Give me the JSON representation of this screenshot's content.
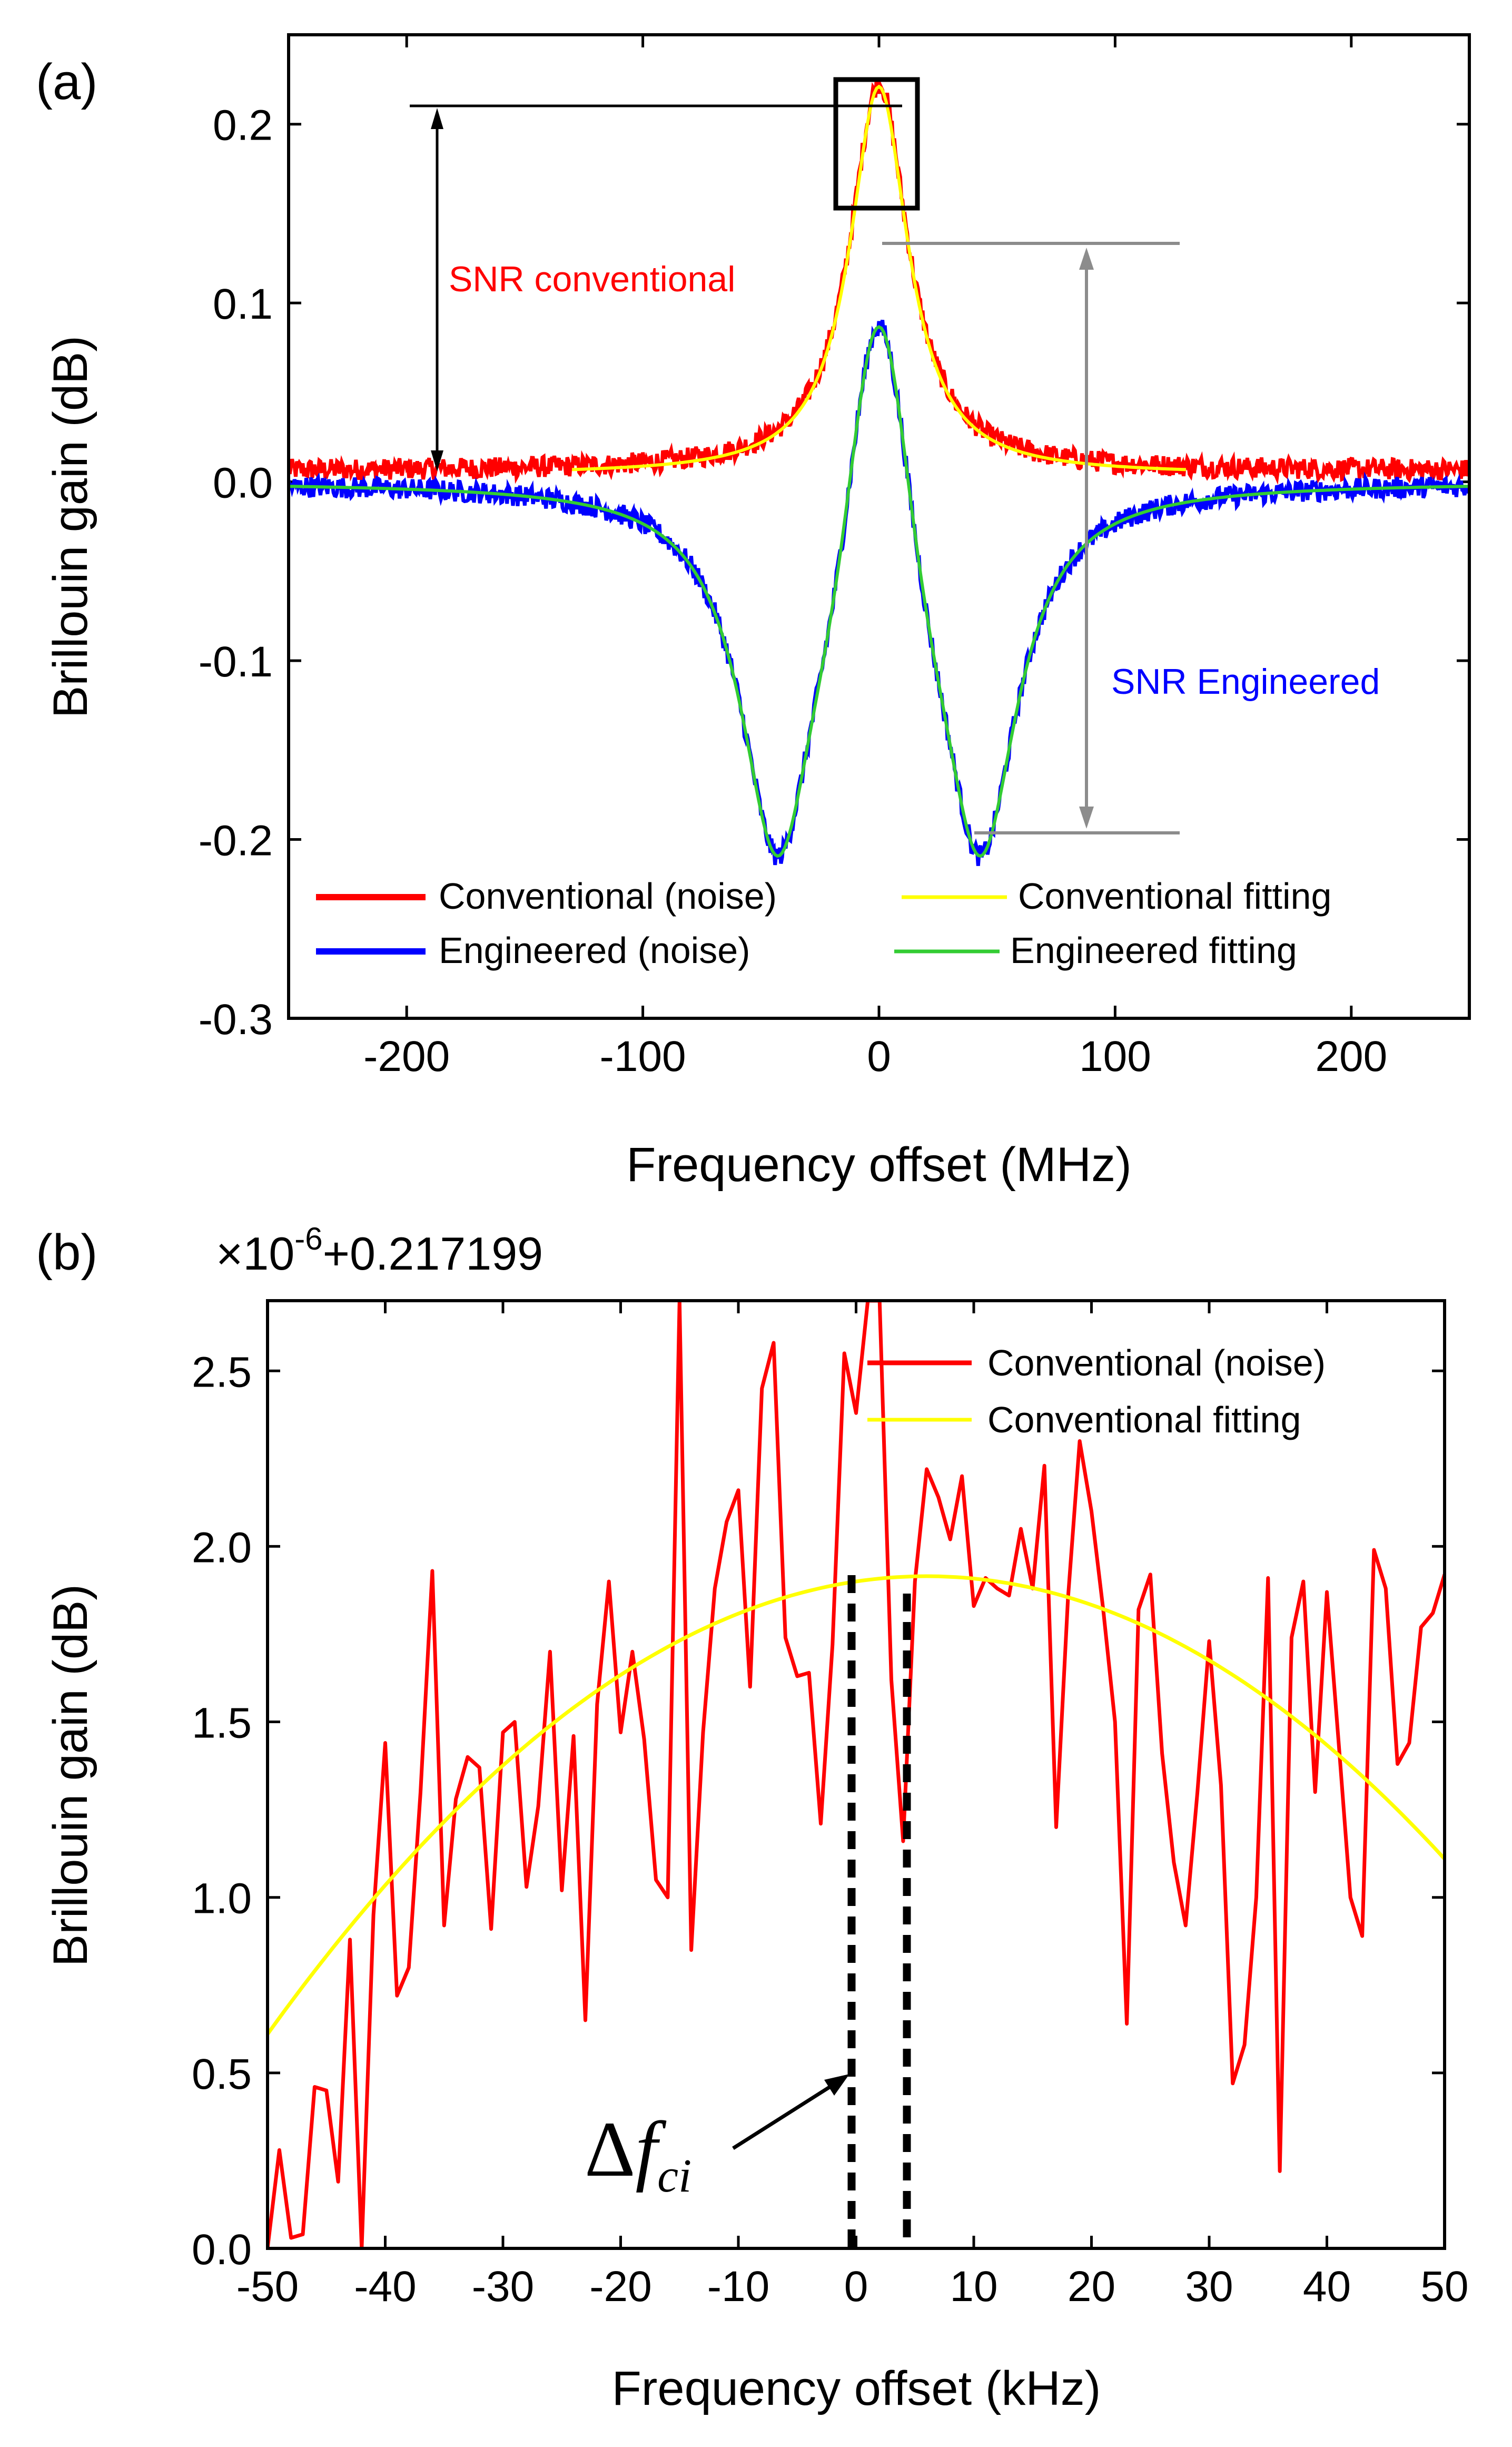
{
  "panels": {
    "a": {
      "label": "(a)",
      "xlabel": "Frequency offset (MHz)",
      "ylabel": "Brillouin gain (dB)",
      "annotations": {
        "snr_conventional": "SNR conventional",
        "snr_engineered": "SNR Engineered"
      }
    },
    "b": {
      "label": "(b)",
      "xlabel": "Frequency offset (kHz)",
      "ylabel": "Brillouin gain (dB)",
      "offset_label": "×10",
      "offset_exponent": "-6",
      "offset_constant": "+0.217199",
      "delta_symbol": "Δ",
      "delta_f": "f",
      "delta_sub": "ci"
    }
  },
  "colors": {
    "conventional_noise": "#ff0000",
    "conventional_fit": "#ffff00",
    "engineered_noise": "#0000ff",
    "engineered_fit": "#33cc33",
    "annotation_gray": "#8c8c8c",
    "snr_conventional_text": "#ff0000",
    "snr_engineered_text": "#0000ff"
  },
  "chart_data": [
    {
      "type": "line",
      "panel": "a",
      "xlim": [
        -250,
        250
      ],
      "ylim": [
        -0.3,
        0.25
      ],
      "xticks": [
        -200,
        -100,
        0,
        100,
        200
      ],
      "xtick_labels": [
        "-200",
        "-100",
        "0",
        "100",
        "200"
      ],
      "yticks": [
        -0.3,
        -0.2,
        -0.1,
        0.0,
        0.1,
        0.2
      ],
      "ytick_labels": [
        "-0.3",
        "-0.2",
        "-0.1",
        "0.0",
        "0.1",
        "0.2"
      ],
      "legend_position": "bottom",
      "series": [
        {
          "name": "Conventional (noise)",
          "model": "lorentzian",
          "peak": 0.217,
          "fwhm": 30,
          "noise": 0.006,
          "x": [
            -250,
            -200,
            -150,
            -100,
            -60,
            -40,
            -20,
            0,
            20,
            40,
            60,
            100,
            150,
            200,
            250
          ],
          "y": [
            0.002,
            0.004,
            0.006,
            0.009,
            0.024,
            0.04,
            0.11,
            0.217,
            0.11,
            0.04,
            0.024,
            0.009,
            0.006,
            0.004,
            0.002
          ]
        },
        {
          "name": "Conventional fitting",
          "model": "lorentzian",
          "peak": 0.217,
          "fwhm": 30,
          "x_range": [
            -130,
            130
          ]
        },
        {
          "name": "Engineered (noise)",
          "model": "engineered",
          "noise": 0.006,
          "x": [
            -250,
            -150,
            -100,
            -70,
            -45,
            -25,
            0,
            25,
            45,
            70,
            100,
            150,
            250
          ],
          "y": [
            -0.003,
            -0.01,
            -0.03,
            -0.1,
            -0.19,
            -0.04,
            0.143,
            -0.04,
            -0.19,
            -0.1,
            -0.03,
            -0.01,
            -0.003
          ]
        },
        {
          "name": "Engineered fitting",
          "model": "engineered"
        }
      ]
    },
    {
      "type": "line",
      "panel": "b",
      "xlim": [
        -50,
        50
      ],
      "ylim": [
        0.0,
        2.7
      ],
      "xticks": [
        -50,
        -40,
        -30,
        -20,
        -10,
        0,
        10,
        20,
        30,
        40,
        50
      ],
      "xtick_labels": [
        "-50",
        "-40",
        "-30",
        "-20",
        "-10",
        "0",
        "10",
        "20",
        "30",
        "40",
        "50"
      ],
      "yticks": [
        0.0,
        0.5,
        1.0,
        1.5,
        2.0,
        2.5
      ],
      "ytick_labels": [
        "0.0",
        "0.5",
        "1.0",
        "1.5",
        "2.0",
        "2.5"
      ],
      "legend_position": "top-right",
      "series": [
        {
          "name": "Conventional (noise)",
          "x": [
            -50,
            -49,
            -48,
            -47,
            -46,
            -45,
            -44,
            -43,
            -42,
            -41,
            -40,
            -39,
            -38,
            -37,
            -36,
            -35,
            -34,
            -33,
            -32,
            -31,
            -30,
            -29,
            -28,
            -27,
            -26,
            -25,
            -24,
            -23,
            -22,
            -21,
            -20,
            -19,
            -18,
            -17,
            -16,
            -15,
            -14,
            -13,
            -12,
            -11,
            -10,
            -9,
            -8,
            -7,
            -6,
            -5,
            -4,
            -3,
            -2,
            -1,
            0,
            1,
            2,
            3,
            4,
            5,
            6,
            7,
            8,
            9,
            10,
            11,
            12,
            13,
            14,
            15,
            16,
            17,
            18,
            19,
            20,
            21,
            22,
            23,
            24,
            25,
            26,
            27,
            28,
            29,
            30,
            31,
            32,
            33,
            34,
            35,
            36,
            37,
            38,
            39,
            40,
            41,
            42,
            43,
            44,
            45,
            46,
            47,
            48,
            49,
            50
          ],
          "y": [
            0.0,
            0.28,
            0.03,
            0.04,
            0.46,
            0.45,
            0.19,
            0.88,
            0.0,
            0.95,
            1.44,
            0.72,
            0.8,
            1.3,
            1.93,
            0.92,
            1.28,
            1.4,
            1.37,
            0.91,
            1.47,
            1.5,
            1.03,
            1.26,
            1.7,
            1.02,
            1.46,
            0.65,
            1.55,
            1.9,
            1.47,
            1.7,
            1.45,
            1.05,
            1.0,
            2.7,
            0.85,
            1.47,
            1.88,
            2.07,
            2.16,
            1.6,
            2.45,
            2.58,
            1.74,
            1.63,
            1.64,
            1.21,
            1.72,
            2.55,
            2.38,
            2.7,
            2.7,
            1.62,
            1.16,
            1.9,
            2.22,
            2.14,
            2.02,
            2.2,
            1.83,
            1.91,
            1.88,
            1.86,
            2.05,
            1.88,
            2.23,
            1.2,
            1.85,
            2.3,
            2.1,
            1.82,
            1.5,
            0.64,
            1.82,
            1.92,
            1.41,
            1.1,
            0.92,
            1.3,
            1.73,
            1.32,
            0.47,
            0.58,
            1.0,
            1.91,
            0.22,
            1.74,
            1.9,
            1.3,
            1.87,
            1.44,
            1.0,
            0.89,
            1.99,
            1.88,
            1.38,
            1.44,
            1.77,
            1.81,
            1.92
          ]
        },
        {
          "name": "Conventional fitting",
          "model": "parabola",
          "vertex_x": 6.0,
          "vertex_y": 1.915,
          "curvature": 0.000416
        }
      ]
    }
  ]
}
